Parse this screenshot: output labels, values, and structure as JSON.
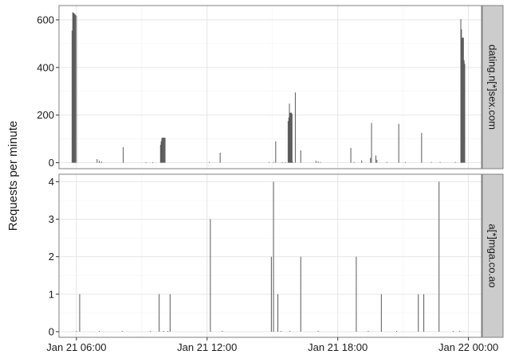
{
  "chart_data": {
    "type": "bar",
    "ylabel": "Requests per minute",
    "x_tick_labels": [
      "Jan 21 06:00",
      "Jan 21 12:00",
      "Jan 21 18:00",
      "Jan 22 00:00"
    ],
    "x_tick_hours": [
      6,
      12,
      18,
      24
    ],
    "xlim_hours": [
      5.2,
      24.6
    ],
    "grid": true,
    "facets": [
      {
        "name": "dating.n[*]sex.com",
        "ylim": [
          -25,
          660
        ],
        "yticks": [
          0,
          200,
          400,
          600
        ],
        "bar_width_hours": 0.03,
        "points": [
          {
            "x": 5.8,
            "y": 555
          },
          {
            "x": 5.83,
            "y": 632
          },
          {
            "x": 5.86,
            "y": 630
          },
          {
            "x": 5.89,
            "y": 628
          },
          {
            "x": 5.92,
            "y": 625
          },
          {
            "x": 5.95,
            "y": 622
          },
          {
            "x": 6.0,
            "y": 618
          },
          {
            "x": 6.95,
            "y": 15
          },
          {
            "x": 7.05,
            "y": 8
          },
          {
            "x": 7.15,
            "y": 5
          },
          {
            "x": 8.15,
            "y": 65
          },
          {
            "x": 9.2,
            "y": 2
          },
          {
            "x": 9.5,
            "y": 2
          },
          {
            "x": 9.86,
            "y": 75
          },
          {
            "x": 9.89,
            "y": 90
          },
          {
            "x": 9.92,
            "y": 103
          },
          {
            "x": 9.95,
            "y": 105
          },
          {
            "x": 9.98,
            "y": 105
          },
          {
            "x": 10.01,
            "y": 105
          },
          {
            "x": 10.04,
            "y": 105
          },
          {
            "x": 10.07,
            "y": 105
          },
          {
            "x": 12.1,
            "y": 3
          },
          {
            "x": 12.6,
            "y": 42
          },
          {
            "x": 14.85,
            "y": 3
          },
          {
            "x": 15.05,
            "y": 3
          },
          {
            "x": 15.15,
            "y": 90
          },
          {
            "x": 15.45,
            "y": 2
          },
          {
            "x": 15.6,
            "y": 3
          },
          {
            "x": 15.72,
            "y": 175
          },
          {
            "x": 15.75,
            "y": 190
          },
          {
            "x": 15.78,
            "y": 248
          },
          {
            "x": 15.81,
            "y": 210
          },
          {
            "x": 15.84,
            "y": 210
          },
          {
            "x": 15.87,
            "y": 210
          },
          {
            "x": 15.9,
            "y": 205
          },
          {
            "x": 15.93,
            "y": 4
          },
          {
            "x": 16.05,
            "y": 295
          },
          {
            "x": 16.3,
            "y": 52
          },
          {
            "x": 17.0,
            "y": 8
          },
          {
            "x": 17.1,
            "y": 5
          },
          {
            "x": 17.2,
            "y": 3
          },
          {
            "x": 18.6,
            "y": 62
          },
          {
            "x": 18.75,
            "y": 3
          },
          {
            "x": 19.1,
            "y": 10
          },
          {
            "x": 19.5,
            "y": 20
          },
          {
            "x": 19.55,
            "y": 167
          },
          {
            "x": 19.75,
            "y": 30
          },
          {
            "x": 19.8,
            "y": 12
          },
          {
            "x": 20.25,
            "y": 3
          },
          {
            "x": 20.8,
            "y": 163
          },
          {
            "x": 21.1,
            "y": 3
          },
          {
            "x": 21.85,
            "y": 125
          },
          {
            "x": 22.3,
            "y": 3
          },
          {
            "x": 22.7,
            "y": 3
          },
          {
            "x": 23.4,
            "y": 3
          },
          {
            "x": 23.65,
            "y": 603
          },
          {
            "x": 23.68,
            "y": 560
          },
          {
            "x": 23.71,
            "y": 525
          },
          {
            "x": 23.74,
            "y": 525
          },
          {
            "x": 23.77,
            "y": 525
          },
          {
            "x": 23.8,
            "y": 430
          },
          {
            "x": 23.83,
            "y": 415
          }
        ]
      },
      {
        "name": "a[*]mga.co.ao",
        "ylim": [
          -0.15,
          4.2
        ],
        "yticks": [
          0,
          1,
          2,
          3,
          4
        ],
        "bar_width_hours": 0.02,
        "points": [
          {
            "x": 6.15,
            "y": 1
          },
          {
            "x": 6.0,
            "y": 0.02
          },
          {
            "x": 7.05,
            "y": 0.02
          },
          {
            "x": 8.1,
            "y": 0.02
          },
          {
            "x": 9.4,
            "y": 0.02
          },
          {
            "x": 9.8,
            "y": 1
          },
          {
            "x": 10.3,
            "y": 1
          },
          {
            "x": 10.0,
            "y": 0.02
          },
          {
            "x": 10.2,
            "y": 0.02
          },
          {
            "x": 12.15,
            "y": 3
          },
          {
            "x": 12.7,
            "y": 0.02
          },
          {
            "x": 14.95,
            "y": 2
          },
          {
            "x": 15.05,
            "y": 4
          },
          {
            "x": 15.25,
            "y": 1
          },
          {
            "x": 15.4,
            "y": 0.02
          },
          {
            "x": 15.8,
            "y": 0.02
          },
          {
            "x": 16.3,
            "y": 2
          },
          {
            "x": 17.1,
            "y": 0.02
          },
          {
            "x": 18.85,
            "y": 2
          },
          {
            "x": 19.4,
            "y": 0.02
          },
          {
            "x": 20.0,
            "y": 1
          },
          {
            "x": 20.7,
            "y": 0.02
          },
          {
            "x": 21.7,
            "y": 1
          },
          {
            "x": 21.95,
            "y": 1
          },
          {
            "x": 22.65,
            "y": 4
          },
          {
            "x": 23.3,
            "y": 0.02
          },
          {
            "x": 23.6,
            "y": 0.02
          }
        ]
      }
    ]
  }
}
